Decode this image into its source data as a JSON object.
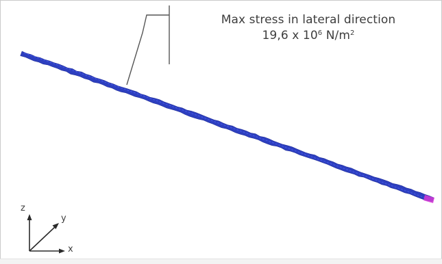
{
  "annotation": {
    "title": "Max stress in lateral direction",
    "value_main": "19,6 x 10",
    "value_exponent": "6",
    "value_unit_base": " N/m",
    "value_unit_exponent": "2"
  },
  "axes": {
    "z_label": "z",
    "y_label": "y",
    "x_label": "x"
  },
  "colors": {
    "beam": "#2d3fbf",
    "beam_highlight": "#4a5cf0",
    "beam_tip": "#d63ad6",
    "leader": "#555555",
    "text": "#3d3d3d"
  }
}
